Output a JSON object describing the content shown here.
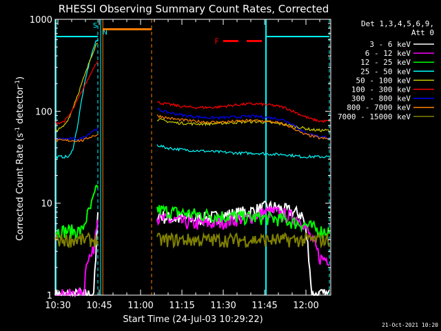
{
  "chart_data": {
    "type": "line",
    "title": "RHESSI Observing Summary Count Rates, Corrected",
    "xlabel": "Start Time (24-Jul-03 10:29:22)",
    "ylabel_main": "Corrected Count Rate (s",
    "ylabel_sup1": "-1",
    "ylabel_mid": " detector",
    "ylabel_sup2": "-1",
    "ylabel_end": ")",
    "x_range_minutes": [
      0,
      100
    ],
    "y_range_log": [
      1,
      1000
    ],
    "x_ticks": [
      {
        "t": 1,
        "label": "10:30"
      },
      {
        "t": 16,
        "label": "10:45"
      },
      {
        "t": 31,
        "label": "11:00"
      },
      {
        "t": 46,
        "label": "11:15"
      },
      {
        "t": 61,
        "label": "11:30"
      },
      {
        "t": 76,
        "label": "11:45"
      },
      {
        "t": 91,
        "label": "12:00"
      }
    ],
    "y_ticks": [
      {
        "v": 1,
        "label": "1"
      },
      {
        "v": 10,
        "label": "10"
      },
      {
        "v": 100,
        "label": "100"
      },
      {
        "v": 1000,
        "label": "1000"
      }
    ],
    "legend_header": [
      "Det 1,3,4,5,6,9,",
      "Att 0"
    ],
    "series": [
      {
        "name": "3 - 6 keV",
        "color": "#ffffff",
        "pre": [
          1,
          1,
          1,
          1,
          1,
          1,
          1,
          1,
          1,
          1,
          1,
          1,
          1,
          1,
          1,
          1,
          1,
          1,
          2,
          7
        ],
        "post": [
          7.5,
          7,
          6.8,
          6.8,
          6.8,
          6.8,
          7,
          7.2,
          7.5,
          7.8,
          8,
          8.5,
          9,
          9,
          8.5,
          8,
          7.5,
          1,
          1,
          1
        ]
      },
      {
        "name": "6 - 12 keV",
        "color": "#ff00ff",
        "pre": [
          1,
          1,
          1,
          1,
          1,
          1,
          1,
          1,
          1,
          1,
          1,
          1,
          1,
          1,
          2.6,
          2.6,
          2.6,
          3,
          5,
          8
        ],
        "post": [
          7,
          6.5,
          6.5,
          6.2,
          6,
          6,
          6,
          6.2,
          6.5,
          6.8,
          7,
          7.5,
          8,
          8,
          7.5,
          7,
          6.5,
          4,
          2.5,
          2.5
        ]
      },
      {
        "name": "12 - 25 keV",
        "color": "#00ff00",
        "pre": [
          5,
          5,
          5,
          5,
          5,
          5,
          5,
          5,
          5,
          5,
          5,
          5,
          5,
          6,
          7,
          8,
          9,
          11,
          13,
          16
        ],
        "post": [
          8.5,
          8.2,
          8,
          7.8,
          7.6,
          7.5,
          7.4,
          7.3,
          7.2,
          7.1,
          7,
          7,
          6.9,
          6.8,
          6.6,
          6.2,
          6,
          5.5,
          5,
          5
        ]
      },
      {
        "name": "25 - 50 keV",
        "color": "#00ffff",
        "pre": [
          32,
          32,
          32,
          32,
          32,
          32,
          32,
          34,
          40,
          52,
          70,
          100,
          140,
          190,
          250,
          320,
          400,
          480,
          560,
          600
        ],
        "post": [
          43,
          40,
          39,
          38,
          37.5,
          37,
          36.5,
          36,
          35.5,
          35,
          35,
          35,
          34.5,
          34,
          34,
          33,
          32,
          32,
          32,
          32
        ]
      },
      {
        "name": "50 - 100 keV",
        "color": "#cccc00",
        "pre": [
          63,
          63,
          64,
          66,
          70,
          76,
          84,
          95,
          110,
          130,
          150,
          175,
          205,
          240,
          280,
          330,
          390,
          450,
          520,
          560
        ],
        "post": [
          82,
          78,
          75,
          74,
          73,
          73,
          73,
          74,
          75,
          76,
          77,
          77,
          76,
          74,
          72,
          69,
          66,
          63,
          62,
          62
        ]
      },
      {
        "name": "100 - 300 keV",
        "color": "#ff0000",
        "pre": [
          75,
          75,
          75,
          76,
          78,
          82,
          88,
          96,
          106,
          118,
          132,
          148,
          166,
          186,
          208,
          232,
          262,
          296,
          330,
          360
        ],
        "post": [
          125,
          120,
          116,
          112,
          110,
          110,
          110,
          112,
          115,
          118,
          120,
          120,
          118,
          115,
          110,
          100,
          90,
          82,
          78,
          78
        ]
      },
      {
        "name": "300 - 800 keV",
        "color": "#0000ff",
        "pre": [
          50,
          50,
          50,
          50,
          50,
          50,
          50,
          50,
          50,
          50,
          50,
          50,
          51,
          53,
          55,
          57,
          60,
          62,
          63,
          64
        ],
        "post": [
          105,
          98,
          94,
          90,
          88,
          86,
          85,
          85,
          86,
          87,
          88,
          88,
          86,
          84,
          80,
          72,
          60,
          56,
          53,
          52
        ]
      },
      {
        "name": "800 - 7000 keV",
        "color": "#ff8000",
        "pre": [
          48,
          48,
          48,
          48,
          48,
          48,
          48,
          48,
          48,
          48,
          48,
          48,
          48,
          49,
          50,
          52,
          53,
          54,
          55,
          56
        ],
        "post": [
          90,
          85,
          82,
          80,
          78,
          77,
          76,
          76,
          77,
          78,
          79,
          79,
          78,
          76,
          72,
          66,
          57,
          54,
          51,
          50
        ]
      },
      {
        "name": "7000 - 15000 keV",
        "color": "#808000",
        "pre": [
          4,
          4,
          4,
          4,
          4,
          4,
          4,
          4,
          4,
          4,
          4,
          4,
          4,
          4,
          4,
          4,
          4,
          4,
          4,
          4
        ],
        "post": [
          4,
          4,
          4,
          4,
          4,
          4,
          4,
          4,
          4,
          4,
          4,
          4,
          4,
          4,
          4,
          4,
          4,
          4,
          4,
          4
        ]
      }
    ],
    "pre_interval_minutes": [
      0,
      15.5
    ],
    "post_interval_minutes": [
      37,
      99.5
    ],
    "attenuator_level": 780,
    "attenuator_interval_minutes": [
      17.3,
      35
    ],
    "flare_marker": {
      "label": "F",
      "start": 61,
      "end": 76,
      "level": 580
    },
    "night_intervals": [
      {
        "start": 0,
        "end": 15.5,
        "level": 650,
        "solid_edge": "start",
        "label": "S"
      },
      {
        "start": 76.5,
        "end": 99.5,
        "level": 650,
        "solid_edge": "start",
        "label": ""
      }
    ],
    "vlines": [
      {
        "t": 15.5,
        "color": "#00ffff",
        "style": "dash"
      },
      {
        "t": 16.5,
        "color": "#00ffff",
        "style": "solid"
      },
      {
        "t": 17.3,
        "color": "#ff8000",
        "style": "solid"
      },
      {
        "t": 35,
        "color": "#ff8000",
        "style": "dash"
      },
      {
        "t": 99.5,
        "color": "#00ffff",
        "style": "dash"
      }
    ],
    "n_label": "N",
    "footer_date": "21-Oct-2021 10:20"
  }
}
